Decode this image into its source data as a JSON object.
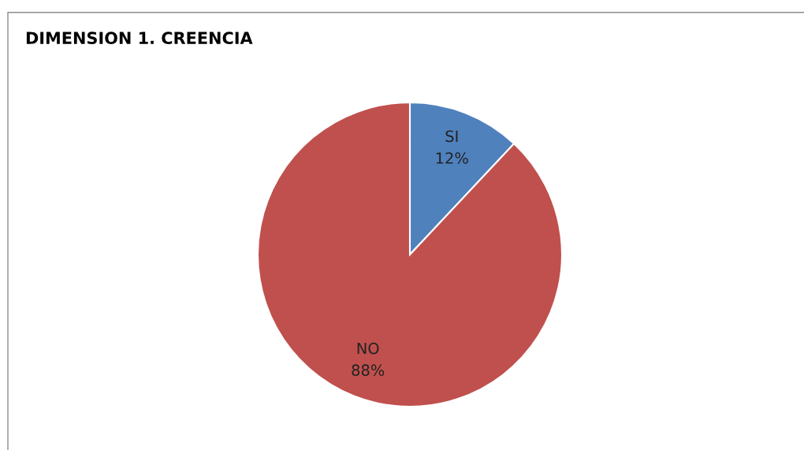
{
  "chart_data": {
    "type": "pie",
    "title": "DIMENSION 1. CREENCIA",
    "categories": [
      "SI",
      "NO"
    ],
    "values": [
      12,
      88
    ],
    "colors": [
      "#4f81bd",
      "#c0504d"
    ],
    "value_labels": [
      "12%",
      "88%"
    ],
    "legend": false
  }
}
